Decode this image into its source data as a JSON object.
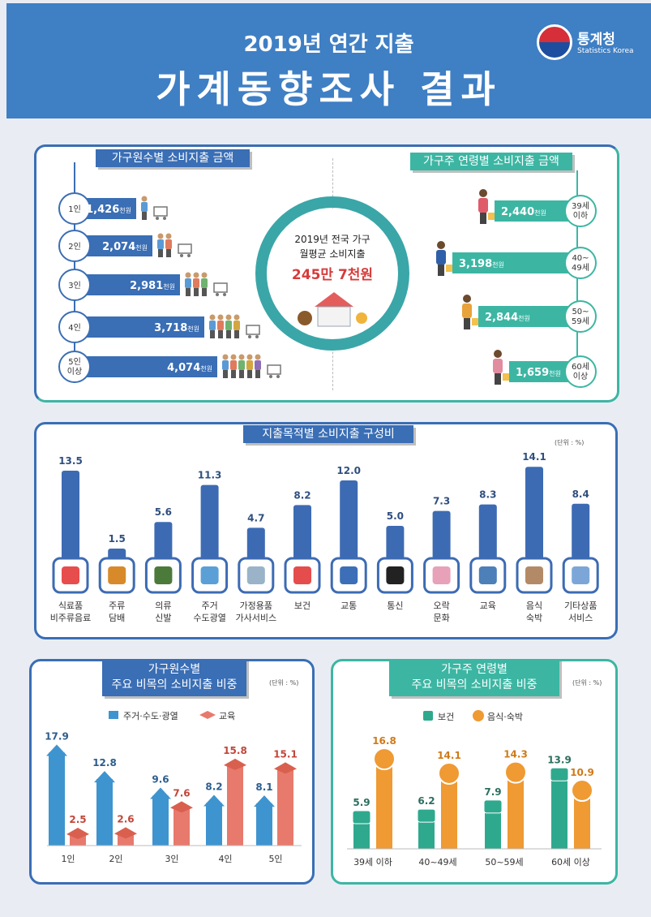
{
  "header": {
    "title_line1": "2019년 연간 지출",
    "title_line2": "가계동향조사 결과",
    "logo_name": "통계청",
    "logo_sub": "Statistics Korea"
  },
  "colors": {
    "blue": "#3a6eb5",
    "teal": "#3cb6a3",
    "bar_blue": "#3d6bb3",
    "light_blue": "#3e94cf",
    "coral": "#e77a6d",
    "orange": "#ef9a33",
    "mint": "#2fa98e"
  },
  "household_size": {
    "tag": "가구원수별 소비지출 금액",
    "unit": "천원",
    "items": [
      {
        "label": "1인",
        "value": "1,426"
      },
      {
        "label": "2인",
        "value": "2,074"
      },
      {
        "label": "3인",
        "value": "2,981"
      },
      {
        "label": "4인",
        "value": "3,718"
      },
      {
        "label": "5인\n이상",
        "value": "4,074"
      }
    ]
  },
  "center": {
    "line1": "2019년 전국 가구",
    "line2": "월평균 소비지출",
    "value": "245만 7천원"
  },
  "householder_age": {
    "tag": "가구주 연령별 소비지출 금액",
    "unit": "천원",
    "items": [
      {
        "label": "39세\n이하",
        "value": "2,440"
      },
      {
        "label": "40~\n49세",
        "value": "3,198"
      },
      {
        "label": "50~\n59세",
        "value": "2,844"
      },
      {
        "label": "60세\n이상",
        "value": "1,659"
      }
    ]
  },
  "composition": {
    "tag": "지출목적별 소비지출 구성비",
    "unit": "(단위 : %)"
  },
  "share_size": {
    "tag_line1": "가구원수별",
    "tag_line2": "주요 비목의 소비지출 비중",
    "unit": "(단위 : %)"
  },
  "share_age": {
    "tag_line1": "가구주 연령별",
    "tag_line2": "주요 비목의 소비지출 비중",
    "unit": "(단위 : %)"
  },
  "chart_data": [
    {
      "type": "bar",
      "categories": [
        "식료품\n비주류음료",
        "주류\n담배",
        "의류\n신발",
        "주거\n수도광열",
        "가정용품\n가사서비스",
        "보건",
        "교통",
        "통신",
        "오락\n문화",
        "교육",
        "음식\n숙박",
        "기타상품\n서비스"
      ],
      "values": [
        13.5,
        1.5,
        5.6,
        11.3,
        4.7,
        8.2,
        12.0,
        5.0,
        7.3,
        8.3,
        14.1,
        8.4
      ],
      "value_labels": [
        "13.5",
        "1.5",
        "5.6",
        "11.3",
        "4.7",
        "8.2",
        "12.0",
        "5.0",
        "7.3",
        "8.3",
        "14.1",
        "8.4"
      ],
      "title": "지출목적별 소비지출 구성비"
    },
    {
      "type": "bar",
      "categories": [
        "1인",
        "2인",
        "3인",
        "4인",
        "5인"
      ],
      "series": [
        {
          "name": "주거·수도·광열",
          "values": [
            17.9,
            12.8,
            9.6,
            8.2,
            8.1
          ],
          "value_labels": [
            "17.9",
            "12.8",
            "9.6",
            "8.2",
            "8.1"
          ]
        },
        {
          "name": "교육",
          "values": [
            2.5,
            2.6,
            7.6,
            15.8,
            15.1
          ],
          "value_labels": [
            "2.5",
            "2.6",
            "7.6",
            "15.8",
            "15.1"
          ]
        }
      ],
      "title": "가구원수별 주요 비목의 소비지출 비중"
    },
    {
      "type": "bar",
      "categories": [
        "39세 이하",
        "40~49세",
        "50~59세",
        "60세 이상"
      ],
      "series": [
        {
          "name": "보건",
          "values": [
            5.9,
            6.2,
            7.9,
            13.9
          ],
          "value_labels": [
            "5.9",
            "6.2",
            "7.9",
            "13.9"
          ]
        },
        {
          "name": "음식·숙박",
          "values": [
            16.8,
            14.1,
            14.3,
            10.9
          ],
          "value_labels": [
            "16.8",
            "14.1",
            "14.3",
            "10.9"
          ]
        }
      ],
      "title": "가구주 연령별 주요 비목의 소비지출 비중"
    }
  ]
}
